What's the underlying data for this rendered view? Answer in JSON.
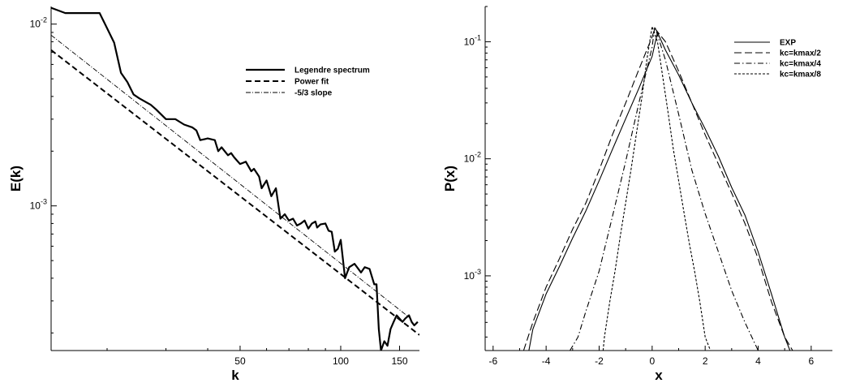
{
  "chart_data": [
    {
      "type": "line",
      "title": "",
      "xlabel": "k",
      "ylabel": "E(k)",
      "x_scale": "log",
      "y_scale": "log",
      "xlim": [
        13.6,
        172
      ],
      "ylim": [
        0.00016,
        0.0125
      ],
      "xticks": [
        50,
        100,
        150
      ],
      "yticks": [
        {
          "value": 0.01,
          "base": "10",
          "exp": "-2"
        },
        {
          "value": 0.001,
          "base": "10",
          "exp": "-3"
        }
      ],
      "legend_position": "top-right",
      "series": [
        {
          "name": "Legendre spectrum",
          "style": "solid-thick",
          "x": [
            13.6,
            15,
            17,
            19,
            21,
            22,
            23,
            24,
            25,
            27,
            28,
            30,
            32,
            34,
            36,
            37,
            38,
            40,
            42,
            43,
            44,
            46,
            47,
            48,
            50,
            52,
            54,
            55,
            57,
            58,
            60,
            62,
            64,
            66,
            68,
            70,
            72,
            74,
            76,
            78,
            80,
            82,
            84,
            85,
            87,
            90,
            92,
            94,
            96,
            98,
            100,
            103,
            106,
            110,
            115,
            118,
            122,
            126,
            128,
            130,
            132,
            135,
            138,
            141,
            144,
            147,
            150,
            153,
            156,
            160,
            163,
            166,
            170
          ],
          "y": [
            0.0123,
            0.0115,
            0.0115,
            0.0115,
            0.0079,
            0.0054,
            0.0048,
            0.0041,
            0.0039,
            0.0036,
            0.0034,
            0.003,
            0.003,
            0.0028,
            0.0027,
            0.0026,
            0.0023,
            0.00235,
            0.0023,
            0.002,
            0.0021,
            0.0019,
            0.00195,
            0.00185,
            0.0017,
            0.00175,
            0.00155,
            0.0016,
            0.00145,
            0.00125,
            0.00138,
            0.00113,
            0.00125,
            0.00085,
            0.0009,
            0.00083,
            0.00085,
            0.00078,
            0.0008,
            0.00083,
            0.00075,
            0.0008,
            0.00082,
            0.00076,
            0.00079,
            0.0008,
            0.00073,
            0.00072,
            0.00056,
            0.00058,
            0.00065,
            0.0004,
            0.00046,
            0.00048,
            0.00043,
            0.00046,
            0.00045,
            0.00037,
            0.00037,
            0.00021,
            0.00016,
            0.00018,
            0.00017,
            0.00021,
            0.00023,
            0.00025,
            0.00024,
            0.00023,
            0.00024,
            0.00025,
            0.00023,
            0.00022,
            0.00023
          ]
        },
        {
          "name": "Power fit",
          "style": "dashed-thick",
          "x": [
            13.6,
            172
          ],
          "y": [
            0.0072,
            0.000195
          ]
        },
        {
          "name": "-5/3 slope",
          "style": "dashdot-thin",
          "x": [
            13.6,
            160
          ],
          "y": [
            0.0087,
            0.000244
          ]
        }
      ]
    },
    {
      "type": "line",
      "title": "",
      "xlabel": "x",
      "ylabel": "P(x)",
      "x_scale": "linear",
      "y_scale": "log",
      "xlim": [
        -6.3,
        6.8
      ],
      "ylim": [
        0.00023,
        0.2
      ],
      "xticks": [
        -6,
        -4,
        -2,
        0,
        2,
        4,
        6
      ],
      "yticks": [
        {
          "value": 0.1,
          "base": "10",
          "exp": "-1"
        },
        {
          "value": 0.01,
          "base": "10",
          "exp": "-2"
        },
        {
          "value": 0.001,
          "base": "10",
          "exp": "-3"
        }
      ],
      "legend_position": "top-right",
      "series": [
        {
          "name": "EXP",
          "style": "solid",
          "x": [
            -4.65,
            -4.5,
            -4,
            -3.5,
            -3,
            -2.5,
            -2,
            -1.5,
            -1,
            -0.5,
            0,
            0.2,
            0.5,
            1,
            1.5,
            2,
            2.5,
            3,
            3.5,
            4,
            4.5,
            5,
            5.2
          ],
          "y": [
            0.00023,
            0.00035,
            0.0007,
            0.0012,
            0.0021,
            0.0036,
            0.0065,
            0.012,
            0.022,
            0.04,
            0.075,
            0.12,
            0.085,
            0.052,
            0.03,
            0.018,
            0.0105,
            0.0057,
            0.0033,
            0.0016,
            0.0007,
            0.0003,
            0.00023
          ]
        },
        {
          "name": "kc=kmax/2",
          "style": "longdash",
          "x": [
            -4.85,
            -4.5,
            -4,
            -3.5,
            -3,
            -2.5,
            -2,
            -1.5,
            -1,
            -0.5,
            0,
            0.1,
            0.5,
            1,
            1.5,
            2,
            2.5,
            3,
            3.5,
            4,
            4.5,
            5,
            5.3
          ],
          "y": [
            0.00023,
            0.0004,
            0.0008,
            0.0014,
            0.0025,
            0.0042,
            0.008,
            0.016,
            0.03,
            0.058,
            0.11,
            0.13,
            0.1,
            0.056,
            0.03,
            0.016,
            0.009,
            0.0051,
            0.0028,
            0.0014,
            0.0006,
            0.0003,
            0.00023
          ]
        },
        {
          "name": "kc=kmax/4",
          "style": "dashdot",
          "x": [
            -3.1,
            -2.8,
            -2.5,
            -2,
            -1.5,
            -1,
            -0.5,
            0,
            0.1,
            0.5,
            1,
            1.5,
            2,
            2.5,
            3,
            3.5,
            4
          ],
          "y": [
            0.00023,
            0.0003,
            0.0005,
            0.0011,
            0.0032,
            0.0095,
            0.03,
            0.09,
            0.135,
            0.07,
            0.024,
            0.008,
            0.0034,
            0.0016,
            0.00075,
            0.0004,
            0.00023
          ]
        },
        {
          "name": "kc=kmax/8",
          "style": "shortdash",
          "x": [
            -1.85,
            -1.8,
            -1.6,
            -1.4,
            -1.2,
            -1,
            -0.8,
            -0.6,
            -0.4,
            -0.2,
            0,
            0.2,
            0.4,
            0.6,
            0.8,
            1,
            1.2,
            1.4,
            1.6,
            1.8,
            2,
            2.2
          ],
          "y": [
            0.00023,
            0.0003,
            0.0006,
            0.0011,
            0.0022,
            0.0042,
            0.008,
            0.016,
            0.032,
            0.07,
            0.135,
            0.1,
            0.05,
            0.025,
            0.012,
            0.0065,
            0.0035,
            0.0019,
            0.0011,
            0.0006,
            0.0003,
            0.00023
          ]
        }
      ]
    }
  ]
}
